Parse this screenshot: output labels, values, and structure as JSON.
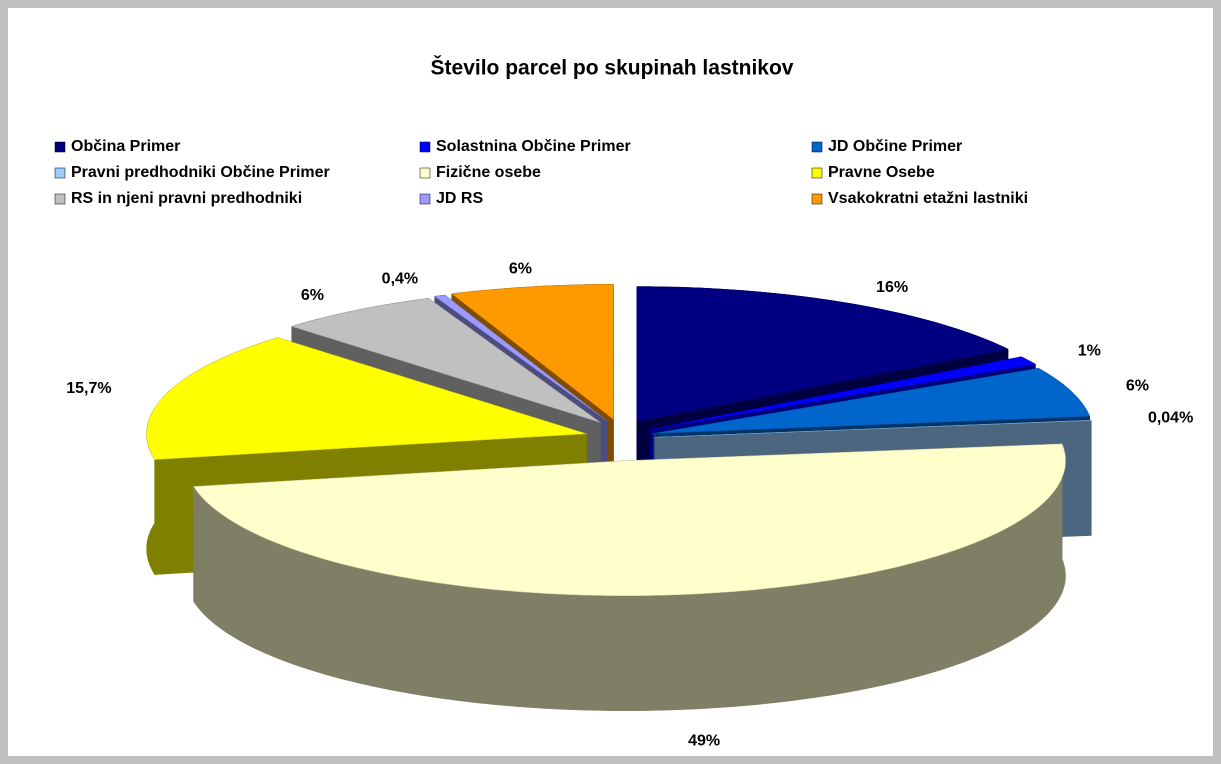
{
  "chart_data": {
    "type": "pie",
    "title": "Število parcel po skupinah lastnikov",
    "categories": [
      "Občina Primer",
      "Solastnina Občine Primer",
      "JD Občine Primer",
      "Pravni predhodniki Občine Primer",
      "Fizične osebe",
      "Pravne Osebe",
      "RS in njeni pravni predhodniki",
      "JD RS",
      "Vsakokratni etažni lastniki"
    ],
    "values": [
      16,
      1,
      6,
      0.04,
      49,
      15.7,
      6,
      0.4,
      6
    ],
    "value_labels": [
      "16%",
      "1%",
      "6%",
      "0,04%",
      "49%",
      "15,7%",
      "6%",
      "0,4%",
      "6%"
    ],
    "colors": [
      "#000080",
      "#0000ff",
      "#0066cc",
      "#99ccff",
      "#ffffcc",
      "#ffff00",
      "#c0c0c0",
      "#9999ff",
      "#ff9900"
    ],
    "legend": "top"
  }
}
